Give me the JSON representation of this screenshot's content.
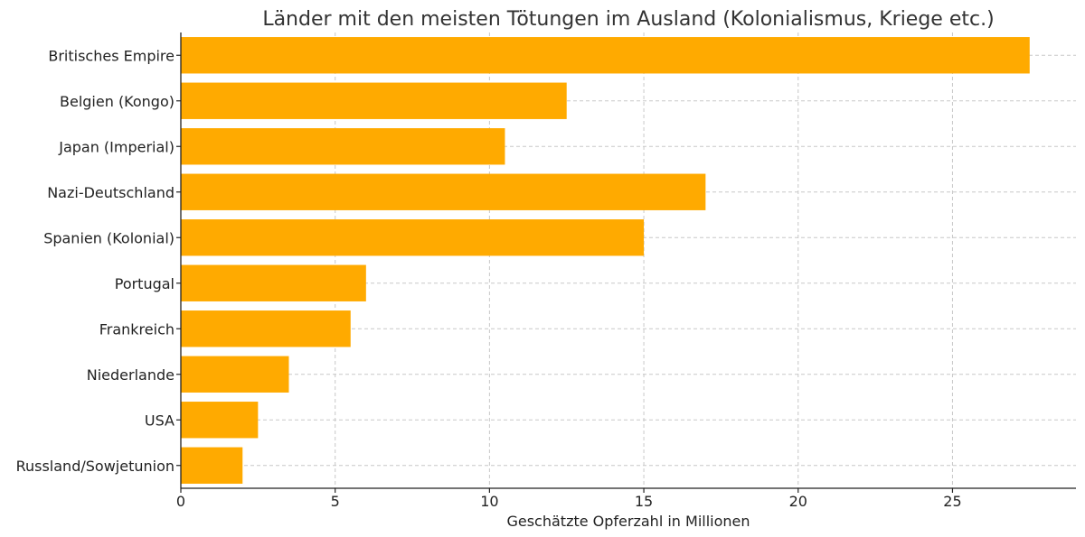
{
  "chart_data": {
    "type": "bar",
    "orientation": "horizontal",
    "title": "Länder mit den meisten Tötungen im Ausland (Kolonialismus, Kriege etc.)",
    "xlabel": "Geschätzte Opferzahl in Millionen",
    "ylabel": "",
    "categories": [
      "Britisches Empire",
      "Belgien (Kongo)",
      "Japan (Imperial)",
      "Nazi-Deutschland",
      "Spanien (Kolonial)",
      "Portugal",
      "Frankreich",
      "Niederlande",
      "USA",
      "Russland/Sowjetunion"
    ],
    "values": [
      27.5,
      12.5,
      10.5,
      17,
      15,
      6,
      5.5,
      3.5,
      2.5,
      2
    ],
    "xlim": [
      0,
      29
    ],
    "xticks": [
      0,
      5,
      10,
      15,
      20,
      25
    ],
    "xtick_labels": [
      "0",
      "5",
      "10",
      "15",
      "20",
      "25"
    ],
    "grid": true,
    "bar_color": "#ffaa00"
  }
}
